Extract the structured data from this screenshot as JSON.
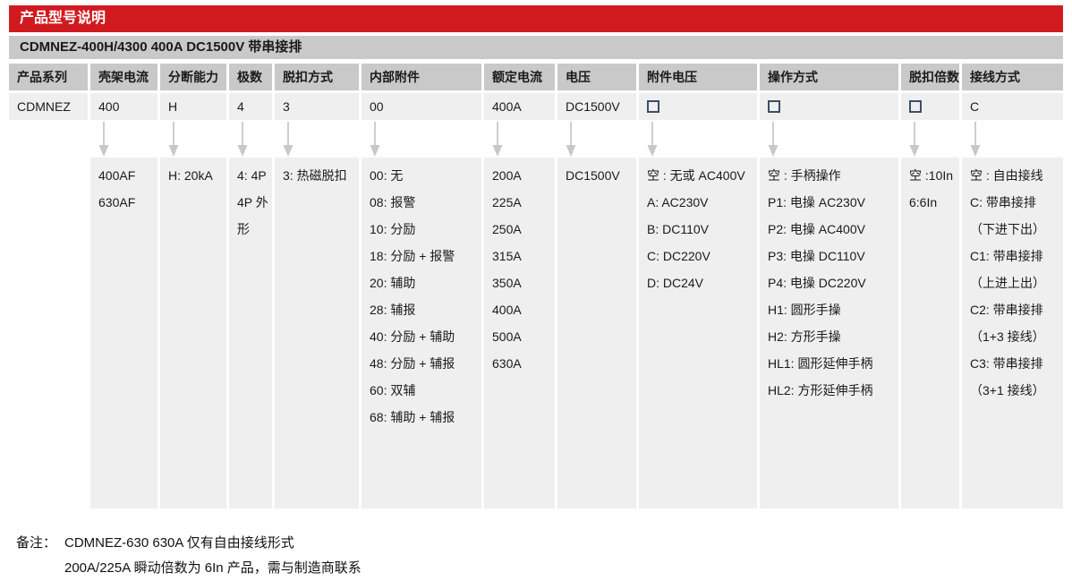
{
  "header": {
    "title": "产品型号说明",
    "subtitle": "CDMNEZ-400H/4300 400A DC1500V 带串接排"
  },
  "colors": {
    "accent_red": "#d11a20",
    "bar_gray": "#c9c9c9",
    "cell_gray": "#f0eff0",
    "arrow_gray": "#c8c8c8",
    "checkbox_border": "#3b4f66",
    "text": "#1a1a1a"
  },
  "icons": {
    "down_arrow": "down-arrow-icon",
    "empty_checkbox": "empty-checkbox-icon"
  },
  "table": {
    "columns": [
      {
        "header": "产品系列",
        "value": "CDMNEZ",
        "checkbox": false,
        "has_arrow": false,
        "options": []
      },
      {
        "header": "壳架电流",
        "value": "400",
        "checkbox": false,
        "has_arrow": true,
        "options": [
          "400AF",
          "630AF"
        ]
      },
      {
        "header": "分断能力",
        "value": "H",
        "checkbox": false,
        "has_arrow": true,
        "options": [
          "H: 20kA"
        ]
      },
      {
        "header": "极数",
        "value": "4",
        "checkbox": false,
        "has_arrow": true,
        "options": [
          "4: 4P",
          "4P 外形"
        ]
      },
      {
        "header": "脱扣方式",
        "value": "3",
        "checkbox": false,
        "has_arrow": true,
        "options": [
          "3: 热磁脱扣"
        ]
      },
      {
        "header": "内部附件",
        "value": "00",
        "checkbox": false,
        "has_arrow": true,
        "options": [
          "00: 无",
          "08: 报警",
          "10: 分励",
          "18: 分励 + 报警",
          "20: 辅助",
          "28: 辅报",
          "40: 分励 + 辅助",
          "48: 分励 + 辅报",
          "60: 双辅",
          "68: 辅助 + 辅报"
        ]
      },
      {
        "header": "额定电流",
        "value": "400A",
        "checkbox": false,
        "has_arrow": true,
        "options": [
          "200A",
          "225A",
          "250A",
          "315A",
          "350A",
          "400A",
          "500A",
          "630A"
        ]
      },
      {
        "header": "电压",
        "value": "DC1500V",
        "checkbox": false,
        "has_arrow": true,
        "options": [
          "DC1500V"
        ]
      },
      {
        "header": "附件电压",
        "value": "",
        "checkbox": true,
        "has_arrow": true,
        "options": [
          "空 : 无或 AC400V",
          "A: AC230V",
          "B: DC110V",
          "C: DC220V",
          "D: DC24V"
        ]
      },
      {
        "header": "操作方式",
        "value": "",
        "checkbox": true,
        "has_arrow": true,
        "options": [
          "空 : 手柄操作",
          "P1: 电操 AC230V",
          "P2: 电操 AC400V",
          "P3: 电操 DC110V",
          "P4: 电操 DC220V",
          "H1: 圆形手操",
          "H2: 方形手操",
          "HL1: 圆形延伸手柄",
          "HL2: 方形延伸手柄"
        ]
      },
      {
        "header": "脱扣倍数",
        "value": "",
        "checkbox": true,
        "has_arrow": true,
        "options": [
          "空 :10In",
          "6:6In"
        ]
      },
      {
        "header": "接线方式",
        "value": "C",
        "checkbox": false,
        "has_arrow": true,
        "options": [
          "空 : 自由接线",
          "C: 带串接排",
          "（下进下出）",
          "C1: 带串接排",
          "（上进上出）",
          "C2: 带串接排",
          "（1+3 接线）",
          "C3: 带串接排",
          "（3+1 接线）"
        ]
      }
    ]
  },
  "notes": {
    "label": "备注：",
    "line1": "CDMNEZ-630 630A 仅有自由接线形式",
    "line2": "200A/225A 瞬动倍数为 6In 产品，需与制造商联系"
  }
}
